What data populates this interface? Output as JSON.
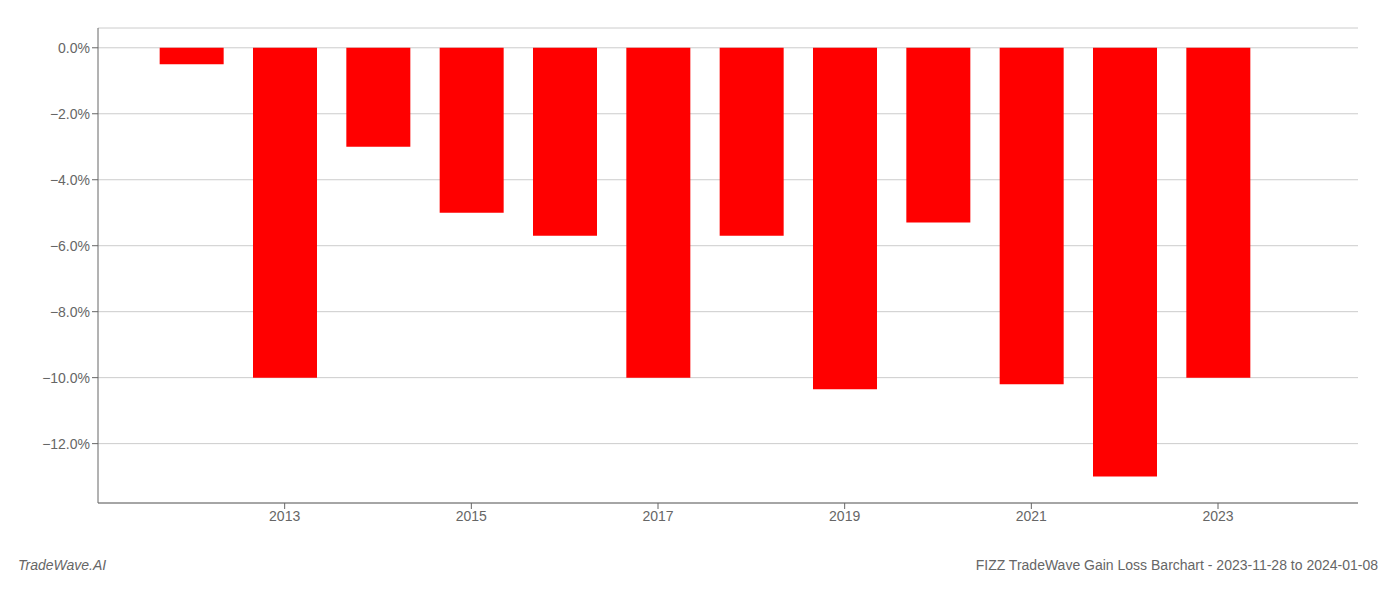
{
  "chart_data": {
    "type": "bar",
    "x": [
      2012,
      2013,
      2014,
      2015,
      2016,
      2017,
      2018,
      2019,
      2020,
      2021,
      2022,
      2023
    ],
    "values": [
      -0.5,
      -10.0,
      -3.0,
      -5.0,
      -5.7,
      -10.0,
      -5.7,
      -10.35,
      -5.3,
      -10.2,
      -13.0,
      -10.0
    ],
    "color": "#ff0000",
    "xlim": [
      2011.0,
      2024.5
    ],
    "xticks": [
      2013,
      2015,
      2017,
      2019,
      2021,
      2023
    ],
    "ylim": [
      -13.8,
      0.6
    ],
    "yticks": [
      {
        "value": 0.0,
        "label": "0.0%"
      },
      {
        "value": -2.0,
        "label": "−2.0%"
      },
      {
        "value": -4.0,
        "label": "−4.0%"
      },
      {
        "value": -6.0,
        "label": "−6.0%"
      },
      {
        "value": -8.0,
        "label": "−8.0%"
      },
      {
        "value": -10.0,
        "label": "−10.0%"
      },
      {
        "value": -12.0,
        "label": "−12.0%"
      }
    ],
    "grid": true,
    "annotations": [
      "TradeWave.AI",
      "FIZZ TradeWave Gain Loss Barchart - 2023-11-28 to 2024-01-08"
    ]
  }
}
